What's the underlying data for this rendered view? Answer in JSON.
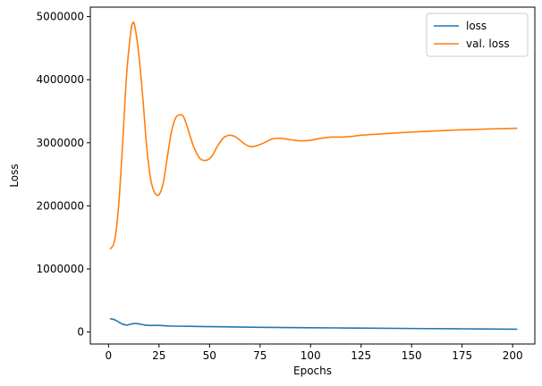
{
  "chart_data": {
    "type": "line",
    "xlabel": "Epochs",
    "ylabel": "Loss",
    "xlim": [
      -9,
      211
    ],
    "ylim": [
      -190000,
      5150000
    ],
    "xticks": [
      0,
      25,
      50,
      75,
      100,
      125,
      150,
      175,
      200
    ],
    "yticks": [
      0,
      1000000,
      2000000,
      3000000,
      4000000,
      5000000
    ],
    "ytick_labels": [
      "0",
      "1000000",
      "2000000",
      "3000000",
      "4000000",
      "5000000"
    ],
    "legend_position": "top-right",
    "grid": false,
    "series": [
      {
        "name": "loss",
        "color": "#1f77b4",
        "points": [
          [
            1,
            210000
          ],
          [
            3,
            195000
          ],
          [
            5,
            160000
          ],
          [
            7,
            125000
          ],
          [
            9,
            110000
          ],
          [
            11,
            125000
          ],
          [
            13,
            135000
          ],
          [
            15,
            130000
          ],
          [
            18,
            110000
          ],
          [
            21,
            105000
          ],
          [
            25,
            105000
          ],
          [
            30,
            95000
          ],
          [
            40,
            90000
          ],
          [
            50,
            85000
          ],
          [
            75,
            75000
          ],
          [
            100,
            68000
          ],
          [
            125,
            62000
          ],
          [
            150,
            56000
          ],
          [
            175,
            51000
          ],
          [
            202,
            45000
          ]
        ]
      },
      {
        "name": "val. loss",
        "color": "#ff7f0e",
        "points": [
          [
            1,
            1320000
          ],
          [
            3,
            1450000
          ],
          [
            5,
            2000000
          ],
          [
            7,
            3000000
          ],
          [
            9,
            4100000
          ],
          [
            11,
            4750000
          ],
          [
            12,
            4900000
          ],
          [
            13,
            4850000
          ],
          [
            15,
            4400000
          ],
          [
            17,
            3700000
          ],
          [
            19,
            2900000
          ],
          [
            21,
            2400000
          ],
          [
            23,
            2200000
          ],
          [
            25,
            2180000
          ],
          [
            27,
            2350000
          ],
          [
            29,
            2750000
          ],
          [
            31,
            3150000
          ],
          [
            33,
            3380000
          ],
          [
            35,
            3440000
          ],
          [
            37,
            3420000
          ],
          [
            39,
            3250000
          ],
          [
            42,
            2950000
          ],
          [
            45,
            2760000
          ],
          [
            48,
            2720000
          ],
          [
            51,
            2780000
          ],
          [
            54,
            2950000
          ],
          [
            57,
            3080000
          ],
          [
            60,
            3120000
          ],
          [
            63,
            3090000
          ],
          [
            67,
            2990000
          ],
          [
            70,
            2940000
          ],
          [
            73,
            2950000
          ],
          [
            77,
            3000000
          ],
          [
            81,
            3060000
          ],
          [
            85,
            3070000
          ],
          [
            90,
            3050000
          ],
          [
            95,
            3030000
          ],
          [
            100,
            3040000
          ],
          [
            105,
            3070000
          ],
          [
            110,
            3090000
          ],
          [
            115,
            3090000
          ],
          [
            120,
            3100000
          ],
          [
            125,
            3120000
          ],
          [
            130,
            3130000
          ],
          [
            140,
            3150000
          ],
          [
            150,
            3170000
          ],
          [
            160,
            3185000
          ],
          [
            170,
            3200000
          ],
          [
            180,
            3210000
          ],
          [
            190,
            3220000
          ],
          [
            202,
            3230000
          ]
        ]
      }
    ]
  }
}
